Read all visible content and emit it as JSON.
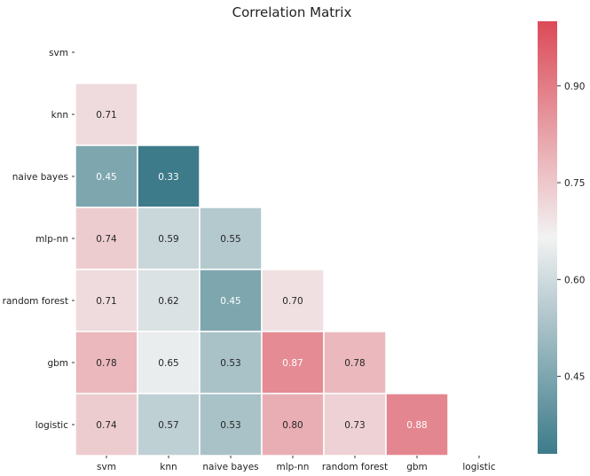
{
  "chart_data": {
    "type": "heatmap",
    "title": "Correlation Matrix",
    "x_labels": [
      "svm",
      "knn",
      "naive bayes",
      "mlp-nn",
      "random forest",
      "gbm",
      "logistic"
    ],
    "y_labels": [
      "svm",
      "knn",
      "naive bayes",
      "mlp-nn",
      "random forest",
      "gbm",
      "logistic"
    ],
    "mask": "upper triangle incl. diagonal",
    "cells": [
      {
        "row": 1,
        "col": 0,
        "value": 0.71,
        "label": "0.71"
      },
      {
        "row": 2,
        "col": 0,
        "value": 0.45,
        "label": "0.45"
      },
      {
        "row": 2,
        "col": 1,
        "value": 0.33,
        "label": "0.33"
      },
      {
        "row": 3,
        "col": 0,
        "value": 0.74,
        "label": "0.74"
      },
      {
        "row": 3,
        "col": 1,
        "value": 0.59,
        "label": "0.59"
      },
      {
        "row": 3,
        "col": 2,
        "value": 0.55,
        "label": "0.55"
      },
      {
        "row": 4,
        "col": 0,
        "value": 0.71,
        "label": "0.71"
      },
      {
        "row": 4,
        "col": 1,
        "value": 0.62,
        "label": "0.62"
      },
      {
        "row": 4,
        "col": 2,
        "value": 0.45,
        "label": "0.45"
      },
      {
        "row": 4,
        "col": 3,
        "value": 0.7,
        "label": "0.70"
      },
      {
        "row": 5,
        "col": 0,
        "value": 0.78,
        "label": "0.78"
      },
      {
        "row": 5,
        "col": 1,
        "value": 0.65,
        "label": "0.65"
      },
      {
        "row": 5,
        "col": 2,
        "value": 0.53,
        "label": "0.53"
      },
      {
        "row": 5,
        "col": 3,
        "value": 0.87,
        "label": "0.87"
      },
      {
        "row": 5,
        "col": 4,
        "value": 0.78,
        "label": "0.78"
      },
      {
        "row": 6,
        "col": 0,
        "value": 0.74,
        "label": "0.74"
      },
      {
        "row": 6,
        "col": 1,
        "value": 0.57,
        "label": "0.57"
      },
      {
        "row": 6,
        "col": 2,
        "value": 0.53,
        "label": "0.53"
      },
      {
        "row": 6,
        "col": 3,
        "value": 0.8,
        "label": "0.80"
      },
      {
        "row": 6,
        "col": 4,
        "value": 0.73,
        "label": "0.73"
      },
      {
        "row": 6,
        "col": 5,
        "value": 0.88,
        "label": "0.88"
      }
    ],
    "colorbar": {
      "range": [
        0.33,
        1.0
      ],
      "ticks": [
        0.45,
        0.6,
        0.75,
        0.9
      ],
      "tick_labels": [
        "0.45",
        "0.60",
        "0.75",
        "0.90"
      ],
      "colors": {
        "low": "#3d7b8a",
        "mid": "#f2f2f2",
        "high": "#dc4a57"
      }
    }
  }
}
